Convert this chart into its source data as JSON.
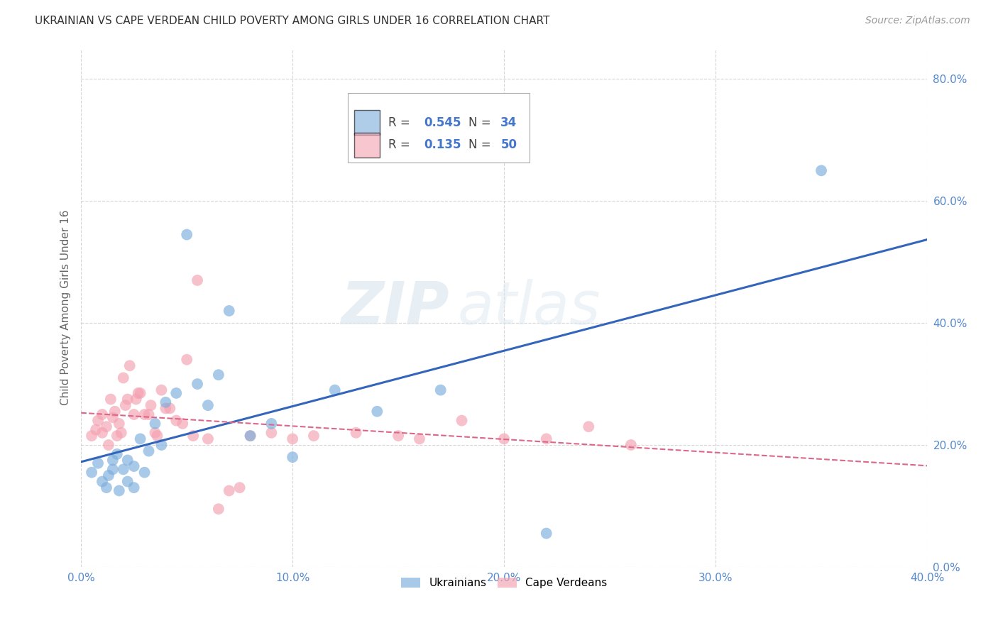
{
  "title": "UKRAINIAN VS CAPE VERDEAN CHILD POVERTY AMONG GIRLS UNDER 16 CORRELATION CHART",
  "source": "Source: ZipAtlas.com",
  "ylabel": "Child Poverty Among Girls Under 16",
  "xlim": [
    0.0,
    0.4
  ],
  "ylim": [
    0.0,
    0.85
  ],
  "yticks": [
    0.0,
    0.2,
    0.4,
    0.6,
    0.8
  ],
  "xticks": [
    0.0,
    0.1,
    0.2,
    0.3,
    0.4
  ],
  "background_color": "#ffffff",
  "grid_color": "#cccccc",
  "watermark_left": "ZIP",
  "watermark_right": "atlas",
  "ukrainian_color": "#7aaddb",
  "cape_verdean_color": "#f4a0b0",
  "ukrainian_R": 0.545,
  "ukrainian_N": 34,
  "cape_verdean_R": 0.135,
  "cape_verdean_N": 50,
  "ukrainian_line_color": "#3366bb",
  "cape_verdean_line_color": "#dd6688",
  "ukrainian_x": [
    0.005,
    0.008,
    0.01,
    0.012,
    0.013,
    0.015,
    0.015,
    0.017,
    0.018,
    0.02,
    0.022,
    0.022,
    0.025,
    0.025,
    0.028,
    0.03,
    0.032,
    0.035,
    0.038,
    0.04,
    0.045,
    0.05,
    0.055,
    0.06,
    0.065,
    0.07,
    0.08,
    0.09,
    0.1,
    0.12,
    0.14,
    0.17,
    0.22,
    0.35
  ],
  "ukrainian_y": [
    0.155,
    0.17,
    0.14,
    0.13,
    0.15,
    0.16,
    0.175,
    0.185,
    0.125,
    0.16,
    0.175,
    0.14,
    0.13,
    0.165,
    0.21,
    0.155,
    0.19,
    0.235,
    0.2,
    0.27,
    0.285,
    0.545,
    0.3,
    0.265,
    0.315,
    0.42,
    0.215,
    0.235,
    0.18,
    0.29,
    0.255,
    0.29,
    0.055,
    0.65
  ],
  "cape_verdean_x": [
    0.005,
    0.007,
    0.008,
    0.01,
    0.01,
    0.012,
    0.013,
    0.014,
    0.015,
    0.016,
    0.017,
    0.018,
    0.019,
    0.02,
    0.021,
    0.022,
    0.023,
    0.025,
    0.026,
    0.027,
    0.028,
    0.03,
    0.032,
    0.033,
    0.035,
    0.036,
    0.038,
    0.04,
    0.042,
    0.045,
    0.048,
    0.05,
    0.053,
    0.055,
    0.06,
    0.065,
    0.07,
    0.075,
    0.08,
    0.09,
    0.1,
    0.11,
    0.13,
    0.15,
    0.16,
    0.18,
    0.2,
    0.22,
    0.24,
    0.26
  ],
  "cape_verdean_y": [
    0.215,
    0.225,
    0.24,
    0.25,
    0.22,
    0.23,
    0.2,
    0.275,
    0.245,
    0.255,
    0.215,
    0.235,
    0.22,
    0.31,
    0.265,
    0.275,
    0.33,
    0.25,
    0.275,
    0.285,
    0.285,
    0.25,
    0.25,
    0.265,
    0.22,
    0.215,
    0.29,
    0.26,
    0.26,
    0.24,
    0.235,
    0.34,
    0.215,
    0.47,
    0.21,
    0.095,
    0.125,
    0.13,
    0.215,
    0.22,
    0.21,
    0.215,
    0.22,
    0.215,
    0.21,
    0.24,
    0.21,
    0.21,
    0.23,
    0.2
  ]
}
